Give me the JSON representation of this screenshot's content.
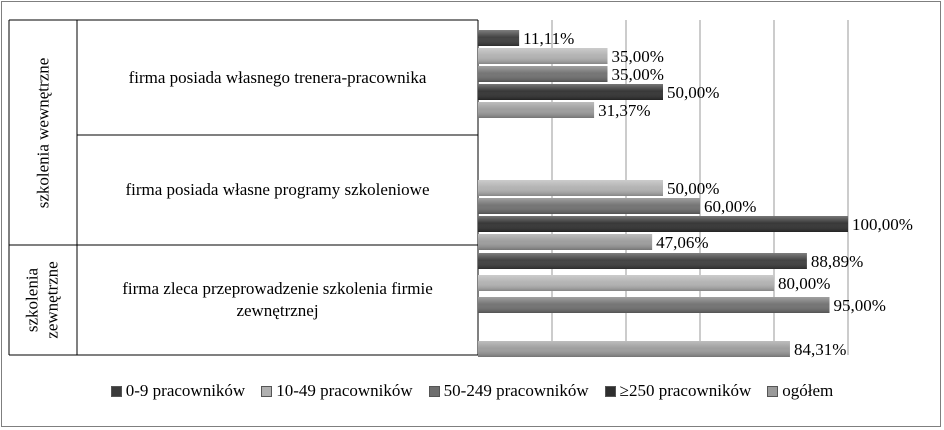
{
  "chart_data": {
    "type": "bar",
    "orientation": "horizontal",
    "groups": [
      {
        "label": "szkolenia wewnętrzne",
        "categories": [
          0,
          1
        ]
      },
      {
        "label": "szkolenia zewnętrzne",
        "categories": [
          2
        ]
      }
    ],
    "categories": [
      "firma posiada własnego trenera-pracownika",
      "firma posiada własne programy szkoleniowe",
      "firma zleca przeprowadzenie szkolenia firmie zewnętrznej"
    ],
    "series": [
      {
        "name": "0-9 pracowników",
        "color": "#3a3a3a",
        "values": [
          11.11,
          null,
          88.89
        ],
        "labels": [
          "11,11%",
          "",
          "88,89%"
        ]
      },
      {
        "name": "10-49 pracowników",
        "color": "#b0b0b0",
        "values": [
          35.0,
          50.0,
          80.0
        ],
        "labels": [
          "35,00%",
          "50,00%",
          "80,00%"
        ]
      },
      {
        "name": "50-249 pracowników",
        "color": "#6e6e6e",
        "values": [
          35.0,
          60.0,
          95.0
        ],
        "labels": [
          "35,00%",
          "60,00%",
          "95,00%"
        ]
      },
      {
        "name": "≥250 pracowników",
        "color": "#2e2e2e",
        "values": [
          50.0,
          100.0,
          null
        ],
        "labels": [
          "50,00%",
          "100,00%",
          ""
        ]
      },
      {
        "name": "ogółem",
        "color": "#9a9a9a",
        "values": [
          31.37,
          47.06,
          84.31
        ],
        "labels": [
          "31,37%",
          "47,06%",
          "84,31%"
        ]
      }
    ],
    "xlim": [
      0,
      120
    ],
    "grid": true,
    "legend_position": "bottom"
  }
}
